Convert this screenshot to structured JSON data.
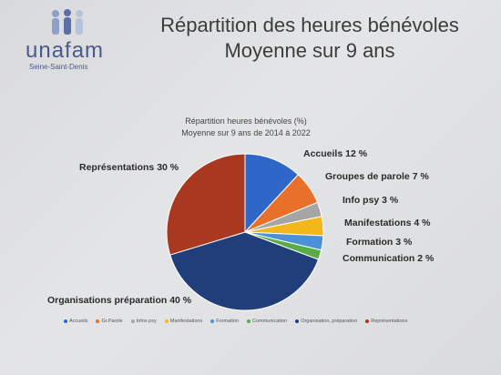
{
  "logo": {
    "word": "unafam",
    "subtitle": "Seine-Saint-Denis"
  },
  "header": {
    "title_line1": "Répartition des heures bénévoles",
    "title_line2": "Moyenne sur 9 ans"
  },
  "chart_data": {
    "type": "pie",
    "title": "Répartition heures bénévoles (%)",
    "subtitle": "Moyenne sur 9 ans de 2014 à 2022",
    "slices": [
      {
        "name": "Accueils",
        "value": 12,
        "label": "Accueils 12 %",
        "legend": "Accueils",
        "color": "#2f67c9"
      },
      {
        "name": "Gr.Parole",
        "value": 7,
        "label": "Groupes de parole 7 %",
        "legend": "Gr.Parole",
        "color": "#e8702a"
      },
      {
        "name": "Infos psy",
        "value": 3,
        "label": "Info psy 3 %",
        "legend": "Infos psy",
        "color": "#a5a5a5"
      },
      {
        "name": "Manifestations",
        "value": 4,
        "label": "Manifestations 4 %",
        "legend": "Manifestations",
        "color": "#f2b71b"
      },
      {
        "name": "Formation",
        "value": 3,
        "label": "Formation 3 %",
        "legend": "Formation",
        "color": "#4b91d6"
      },
      {
        "name": "Communication",
        "value": 2,
        "label": "Communication 2 %",
        "legend": "Communication",
        "color": "#5aab46"
      },
      {
        "name": "Organisation, préparation",
        "value": 40,
        "label": "Organisations préparation 40 %",
        "legend": "Organisation, préparation",
        "color": "#1f3e7a"
      },
      {
        "name": "Représentations",
        "value": 30,
        "label": "Représentations 30 %",
        "legend": "Représentations",
        "color": "#a8381f"
      }
    ],
    "legend_position": "bottom"
  }
}
